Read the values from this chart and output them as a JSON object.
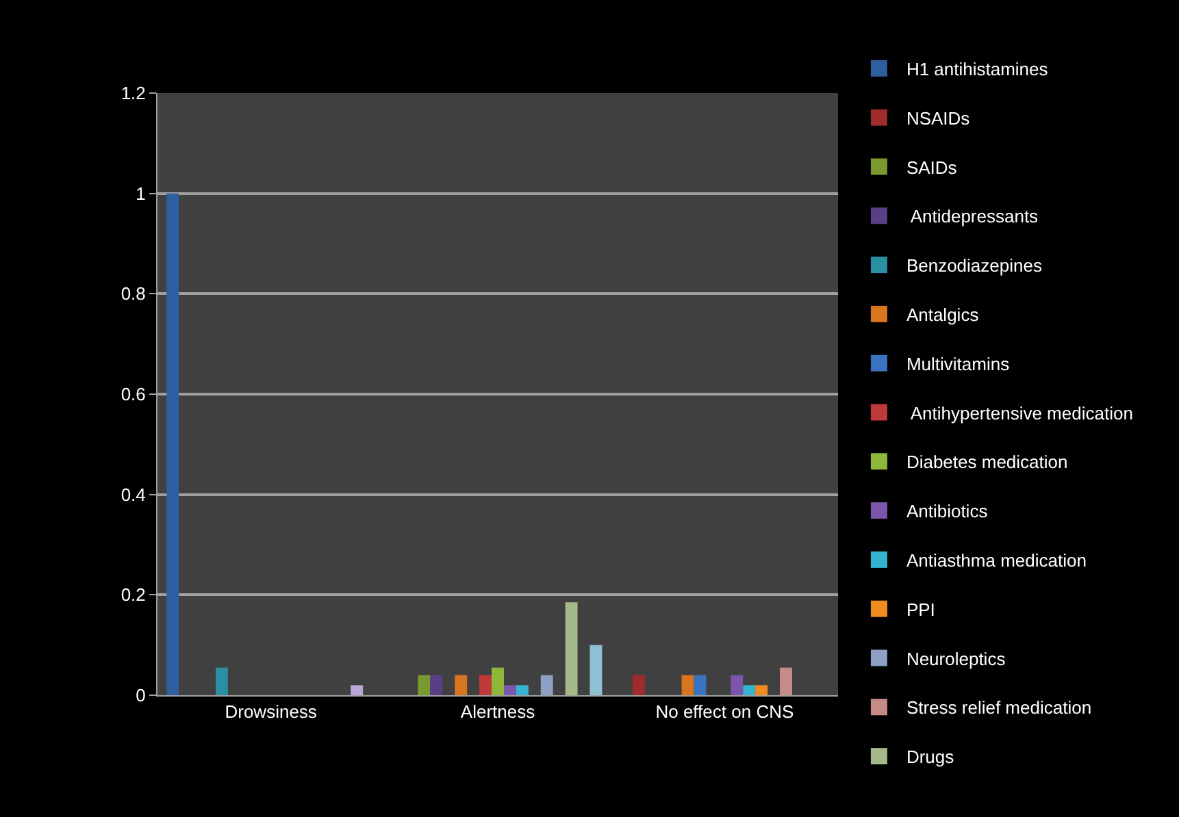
{
  "chart_data": {
    "type": "bar",
    "categories": [
      "Drowsiness",
      "Alertness",
      "No effect on CNS"
    ],
    "ylim": [
      0,
      1.2
    ],
    "yticks": [
      0,
      0.2,
      0.4,
      0.6,
      0.8,
      1,
      1.2
    ],
    "grid": "y",
    "legend": "right",
    "series": [
      {
        "name": "H1 antihistamines",
        "color": "#2e5f9e",
        "values": [
          1,
          null,
          null
        ]
      },
      {
        "name": "NSAIDs",
        "color": "#a02b2b",
        "values": [
          null,
          null,
          0.04
        ]
      },
      {
        "name": "SAIDs",
        "color": "#7a9a30",
        "values": [
          null,
          0.04,
          null
        ]
      },
      {
        "name": " Antidepressants",
        "color": "#5b3f86",
        "values": [
          null,
          0.04,
          null
        ]
      },
      {
        "name": "Benzodiazepines",
        "color": "#2a8fa3",
        "values": [
          0.055,
          null,
          null
        ]
      },
      {
        "name": "Antalgics",
        "color": "#d9751f",
        "values": [
          null,
          0.04,
          0.04
        ]
      },
      {
        "name": "Multivitamins",
        "color": "#3a73c0",
        "values": [
          null,
          null,
          0.04
        ]
      },
      {
        "name": " Antihypertensive medication",
        "color": "#c0393a",
        "values": [
          null,
          0.04,
          null
        ]
      },
      {
        "name": "Diabetes medication",
        "color": "#8fb83a",
        "values": [
          null,
          0.055,
          null
        ]
      },
      {
        "name": "Antibiotics",
        "color": "#7c55ad",
        "values": [
          null,
          0.02,
          0.04
        ]
      },
      {
        "name": "Antiasthma medication",
        "color": "#35b4cf",
        "values": [
          null,
          0.02,
          0.02
        ]
      },
      {
        "name": "PPI",
        "color": "#f08c1e",
        "values": [
          null,
          null,
          0.02
        ]
      },
      {
        "name": "Neuroleptics",
        "color": "#8e9fc3",
        "values": [
          null,
          0.04,
          null
        ]
      },
      {
        "name": "Stress relief medication",
        "color": "#c48b88",
        "values": [
          null,
          null,
          0.055
        ]
      },
      {
        "name": "Drugs",
        "color": "#a6b98a",
        "values": [
          null,
          0.185,
          null
        ]
      },
      {
        "color": "#b8a6d6",
        "values": [
          0.02,
          null,
          null
        ]
      },
      {
        "color": "#8fc0d3",
        "values": [
          null,
          0.1,
          null
        ]
      }
    ]
  }
}
